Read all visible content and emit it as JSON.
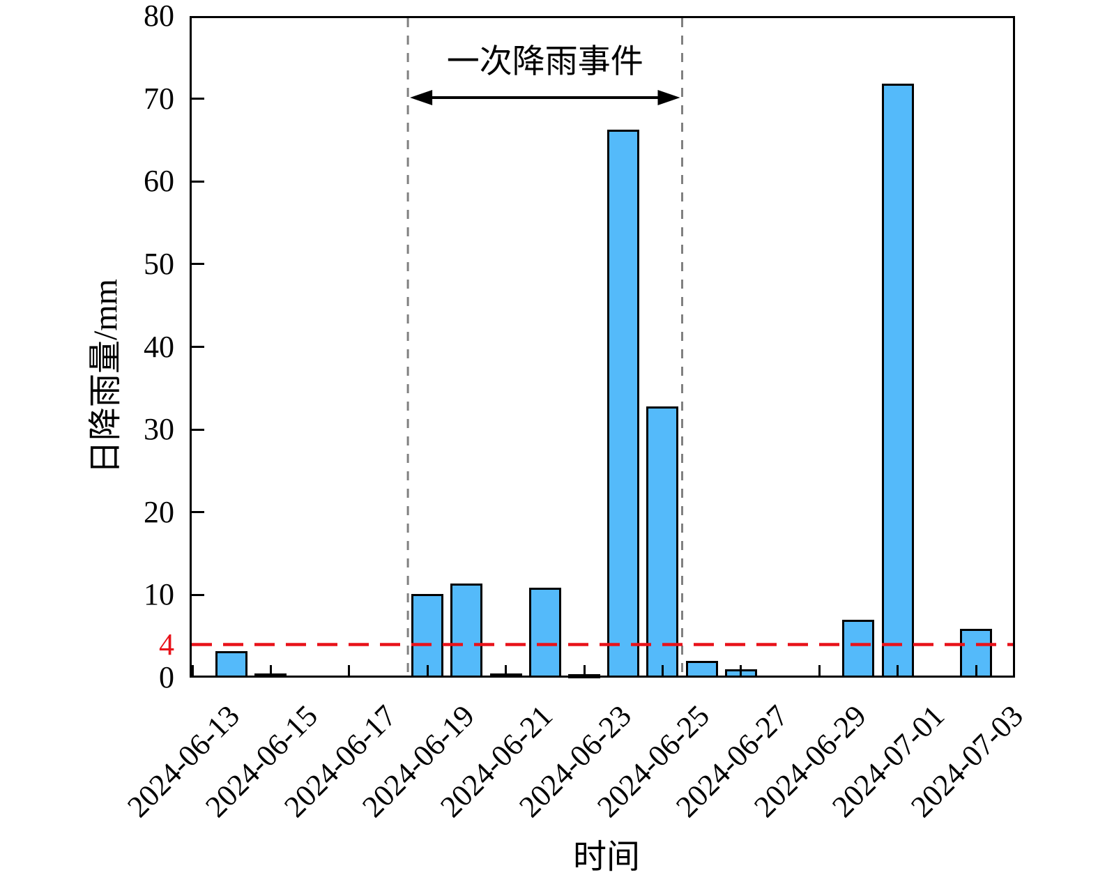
{
  "chart_data": {
    "type": "bar",
    "title": "",
    "xlabel": "时间",
    "ylabel": "日降雨量/mm",
    "categories": [
      "2024-06-13",
      "2024-06-14",
      "2024-06-15",
      "2024-06-16",
      "2024-06-17",
      "2024-06-18",
      "2024-06-19",
      "2024-06-20",
      "2024-06-21",
      "2024-06-22",
      "2024-06-23",
      "2024-06-24",
      "2024-06-25",
      "2024-06-26",
      "2024-06-27",
      "2024-06-28",
      "2024-06-29",
      "2024-06-30",
      "2024-07-01",
      "2024-07-02",
      "2024-07-03"
    ],
    "values": [
      0,
      3.2,
      0.5,
      0,
      0,
      0,
      10.1,
      11.4,
      0.5,
      10.9,
      0.2,
      66.3,
      32.8,
      2.0,
      1.0,
      0,
      0,
      7.0,
      71.8,
      0,
      5.9
    ],
    "xtick_labels": [
      "2024-06-13",
      "2024-06-15",
      "2024-06-17",
      "2024-06-19",
      "2024-06-21",
      "2024-06-23",
      "2024-06-25",
      "2024-06-27",
      "2024-06-29",
      "2024-07-01",
      "2024-07-03"
    ],
    "xtick_day_step": 2,
    "ylim": [
      0,
      80
    ],
    "yticks": [
      0,
      10,
      20,
      30,
      40,
      50,
      60,
      70,
      80
    ],
    "grid": false,
    "legend": null,
    "bar_color": "#54BAFA",
    "bar_edge_color": "#000000",
    "threshold_line": {
      "value": 4,
      "label": "4",
      "color": "#E8121A",
      "style": "dashed"
    },
    "event_window": {
      "label": "一次降雨事件",
      "start_day_offset": 5.5,
      "end_day_offset": 12.5,
      "line_color": "#808080",
      "line_style": "dashed",
      "arrow": "double-headed"
    }
  }
}
